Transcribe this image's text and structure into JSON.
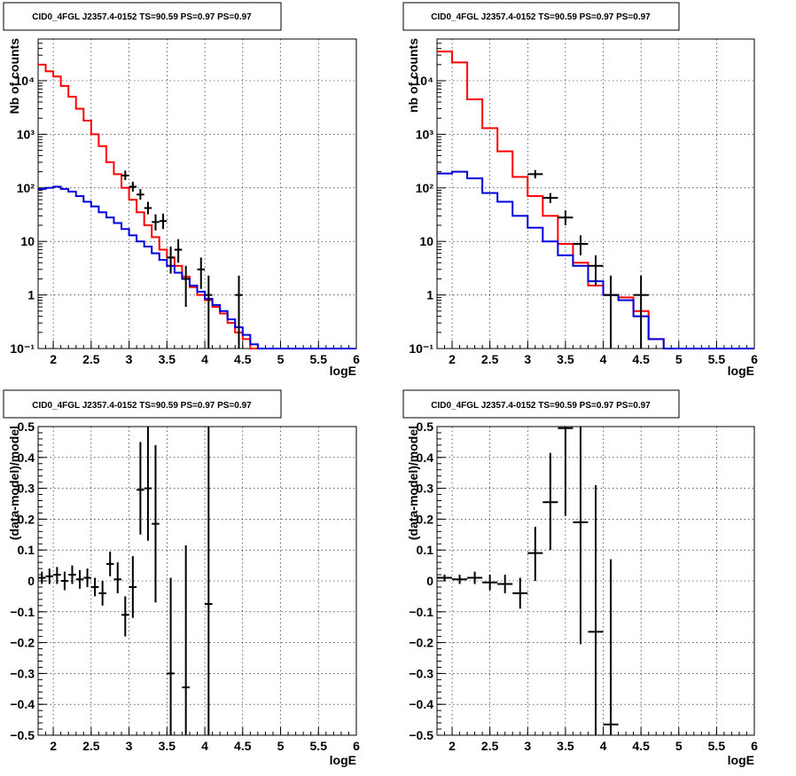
{
  "chart_data": [
    {
      "id": "p1",
      "type": "histogram",
      "title": "CID0_4FGL J2357.4-0152 TS=90.59 PS=0.97 PS=0.97",
      "xlabel": "logE",
      "ylabel": "Nb of counts",
      "xlim": [
        1.8,
        6.0
      ],
      "ylim": [
        0.1,
        60000
      ],
      "yscale": "log",
      "grid": true,
      "xticks": [
        "2",
        "2.5",
        "3",
        "3.5",
        "4",
        "4.5",
        "5",
        "5.5",
        "6"
      ],
      "yticks": [
        "10⁻¹",
        "1",
        "10",
        "10²",
        "10³",
        "10⁴"
      ],
      "bin_edges": [
        1.8,
        1.9,
        2.0,
        2.1,
        2.2,
        2.3,
        2.4,
        2.5,
        2.6,
        2.7,
        2.8,
        2.9,
        3.0,
        3.1,
        3.2,
        3.3,
        3.4,
        3.5,
        3.6,
        3.7,
        3.8,
        3.9,
        4.0,
        4.1,
        4.2,
        4.3,
        4.4,
        4.5,
        4.6,
        4.7,
        4.8,
        4.9,
        5.0,
        5.1,
        5.2,
        5.3,
        5.4,
        5.5,
        5.6,
        5.7,
        5.8,
        5.9,
        6.0
      ],
      "series": [
        {
          "color": "#ff0000",
          "kind": "step",
          "values": [
            20000,
            15000,
            12000,
            8000,
            5000,
            3000,
            1800,
            1000,
            600,
            300,
            180,
            100,
            60,
            35,
            20,
            12,
            7,
            5,
            3.5,
            2.2,
            1.4,
            1,
            0.8,
            0.6,
            0.45,
            0.3,
            0.2,
            0.15,
            0.1,
            0.1,
            0.1,
            0.1,
            0.1,
            0.1,
            0.1,
            0.1,
            0.1,
            0.1,
            0.1,
            0.1,
            0.1,
            0.1
          ]
        },
        {
          "color": "#0000dd",
          "kind": "step",
          "values": [
            95,
            100,
            105,
            95,
            85,
            70,
            55,
            45,
            35,
            28,
            22,
            17,
            13,
            10,
            8,
            6,
            4.5,
            3.5,
            2.6,
            2,
            1.5,
            1.15,
            0.85,
            0.65,
            0.5,
            0.35,
            0.25,
            0.18,
            0.12,
            0.1,
            0.1,
            0.1,
            0.1,
            0.1,
            0.1,
            0.1,
            0.1,
            0.1,
            0.1,
            0.1,
            0.1,
            0.1
          ]
        }
      ],
      "points": [
        {
          "x": 2.95,
          "y": 170,
          "xerr": 0.05,
          "ylo": 140,
          "yhi": 210
        },
        {
          "x": 3.05,
          "y": 105,
          "xerr": 0.05,
          "ylo": 85,
          "yhi": 130
        },
        {
          "x": 3.15,
          "y": 75,
          "xerr": 0.05,
          "ylo": 60,
          "yhi": 95
        },
        {
          "x": 3.25,
          "y": 42,
          "xerr": 0.05,
          "ylo": 32,
          "yhi": 55
        },
        {
          "x": 3.35,
          "y": 23,
          "xerr": 0.05,
          "ylo": 16,
          "yhi": 32
        },
        {
          "x": 3.45,
          "y": 24,
          "xerr": 0.05,
          "ylo": 17,
          "yhi": 33
        },
        {
          "x": 3.55,
          "y": 5,
          "xerr": 0.05,
          "ylo": 2.5,
          "yhi": 8
        },
        {
          "x": 3.65,
          "y": 7,
          "xerr": 0.05,
          "ylo": 4,
          "yhi": 11
        },
        {
          "x": 3.75,
          "y": 2,
          "xerr": 0.05,
          "ylo": 0.6,
          "yhi": 3.5
        },
        {
          "x": 3.95,
          "y": 3,
          "xerr": 0.05,
          "ylo": 1.3,
          "yhi": 5
        },
        {
          "x": 4.05,
          "y": 1,
          "xerr": 0.05,
          "ylo": 0.1,
          "yhi": 2.3
        },
        {
          "x": 4.45,
          "y": 1,
          "xerr": 0.05,
          "ylo": 0.1,
          "yhi": 2.3
        }
      ]
    },
    {
      "id": "p2",
      "type": "histogram",
      "title": "CID0_4FGL J2357.4-0152 TS=90.59 PS=0.97 PS=0.97",
      "xlabel": "logE",
      "ylabel": "nb of counts",
      "xlim": [
        1.8,
        6.0
      ],
      "ylim": [
        0.1,
        60000
      ],
      "yscale": "log",
      "grid": true,
      "xticks": [
        "2",
        "2.5",
        "3",
        "3.5",
        "4",
        "4.5",
        "5",
        "5.5",
        "6"
      ],
      "yticks": [
        "10⁻¹",
        "1",
        "10",
        "10²",
        "10³",
        "10⁴"
      ],
      "bin_edges": [
        1.8,
        2.0,
        2.2,
        2.4,
        2.6,
        2.8,
        3.0,
        3.2,
        3.4,
        3.6,
        3.8,
        4.0,
        4.2,
        4.4,
        4.6,
        4.8,
        5.0,
        5.2,
        5.4,
        5.6,
        5.8,
        6.0
      ],
      "series": [
        {
          "color": "#ff0000",
          "kind": "step",
          "values": [
            35000,
            22000,
            4500,
            1300,
            480,
            160,
            70,
            30,
            9,
            4,
            1.5,
            1.0,
            0.9,
            0.5,
            0.15,
            0.1,
            0.1,
            0.1,
            0.1,
            0.1,
            0.1
          ]
        },
        {
          "color": "#0000dd",
          "kind": "step",
          "values": [
            185,
            200,
            150,
            80,
            55,
            30,
            18,
            10,
            5.5,
            3.5,
            1.8,
            1.0,
            0.8,
            0.4,
            0.15,
            0.1,
            0.1,
            0.1,
            0.1,
            0.1,
            0.1
          ]
        }
      ],
      "points": [
        {
          "x": 3.1,
          "y": 180,
          "xerr": 0.1,
          "ylo": 150,
          "yhi": 215
        },
        {
          "x": 3.3,
          "y": 65,
          "xerr": 0.1,
          "ylo": 52,
          "yhi": 80
        },
        {
          "x": 3.5,
          "y": 28,
          "xerr": 0.1,
          "ylo": 20,
          "yhi": 38
        },
        {
          "x": 3.7,
          "y": 9,
          "xerr": 0.1,
          "ylo": 5.5,
          "yhi": 13
        },
        {
          "x": 3.9,
          "y": 3.5,
          "xerr": 0.1,
          "ylo": 1.5,
          "yhi": 5.5
        },
        {
          "x": 4.1,
          "y": 1,
          "xerr": 0.1,
          "ylo": 0.1,
          "yhi": 2.3
        },
        {
          "x": 4.5,
          "y": 1,
          "xerr": 0.1,
          "ylo": 0.1,
          "yhi": 2.3
        }
      ]
    },
    {
      "id": "p3",
      "type": "scatter",
      "title": "CID0_4FGL J2357.4-0152 TS=90.59 PS=0.97 PS=0.97",
      "xlabel": "logE",
      "ylabel": "(data-model)/model",
      "xlim": [
        1.8,
        6.0
      ],
      "ylim": [
        -0.5,
        0.5
      ],
      "yscale": "linear",
      "grid": true,
      "xticks": [
        "2",
        "2.5",
        "3",
        "3.5",
        "4",
        "4.5",
        "5",
        "5.5",
        "6"
      ],
      "yticks": [
        "−0.5",
        "−0.4",
        "−0.3",
        "−0.2",
        "−0.1",
        "0",
        "0.1",
        "0.2",
        "0.3",
        "0.4",
        "0.5"
      ],
      "series": [],
      "points": [
        {
          "x": 1.85,
          "y": 0.01,
          "xerr": 0.05,
          "ylo": -0.01,
          "yhi": 0.03
        },
        {
          "x": 1.95,
          "y": 0.015,
          "xerr": 0.05,
          "ylo": -0.01,
          "yhi": 0.04
        },
        {
          "x": 2.05,
          "y": 0.02,
          "xerr": 0.05,
          "ylo": -0.01,
          "yhi": 0.045
        },
        {
          "x": 2.15,
          "y": 0.0,
          "xerr": 0.05,
          "ylo": -0.03,
          "yhi": 0.03
        },
        {
          "x": 2.25,
          "y": 0.02,
          "xerr": 0.05,
          "ylo": -0.01,
          "yhi": 0.05
        },
        {
          "x": 2.35,
          "y": 0.005,
          "xerr": 0.05,
          "ylo": -0.025,
          "yhi": 0.035
        },
        {
          "x": 2.45,
          "y": 0.01,
          "xerr": 0.05,
          "ylo": -0.02,
          "yhi": 0.04
        },
        {
          "x": 2.55,
          "y": -0.02,
          "xerr": 0.05,
          "ylo": -0.05,
          "yhi": 0.01
        },
        {
          "x": 2.65,
          "y": -0.04,
          "xerr": 0.05,
          "ylo": -0.08,
          "yhi": 0.0
        },
        {
          "x": 2.75,
          "y": 0.055,
          "xerr": 0.05,
          "ylo": 0.015,
          "yhi": 0.095
        },
        {
          "x": 2.85,
          "y": 0.005,
          "xerr": 0.05,
          "ylo": -0.04,
          "yhi": 0.06
        },
        {
          "x": 2.95,
          "y": -0.11,
          "xerr": 0.05,
          "ylo": -0.18,
          "yhi": -0.05
        },
        {
          "x": 3.05,
          "y": -0.02,
          "xerr": 0.05,
          "ylo": -0.12,
          "yhi": 0.08
        },
        {
          "x": 3.15,
          "y": 0.295,
          "xerr": 0.05,
          "ylo": 0.15,
          "yhi": 0.45
        },
        {
          "x": 3.25,
          "y": 0.3,
          "xerr": 0.05,
          "ylo": 0.13,
          "yhi": 0.5
        },
        {
          "x": 3.35,
          "y": 0.185,
          "xerr": 0.05,
          "ylo": -0.07,
          "yhi": 0.44
        },
        {
          "x": 3.55,
          "y": -0.3,
          "xerr": 0.05,
          "ylo": -0.5,
          "yhi": 0.01
        },
        {
          "x": 3.75,
          "y": -0.345,
          "xerr": 0.05,
          "ylo": -0.5,
          "yhi": 0.115
        },
        {
          "x": 4.05,
          "y": -0.075,
          "xerr": 0.05,
          "ylo": -0.5,
          "yhi": 0.5
        }
      ]
    },
    {
      "id": "p4",
      "type": "scatter",
      "title": "CID0_4FGL J2357.4-0152 TS=90.59 PS=0.97 PS=0.97",
      "xlabel": "logE",
      "ylabel": "(data-model)/model",
      "xlim": [
        1.8,
        6.0
      ],
      "ylim": [
        -0.5,
        0.5
      ],
      "yscale": "linear",
      "grid": true,
      "xticks": [
        "2",
        "2.5",
        "3",
        "3.5",
        "4",
        "4.5",
        "5",
        "5.5",
        "6"
      ],
      "yticks": [
        "−0.5",
        "−0.4",
        "−0.3",
        "−0.2",
        "−0.1",
        "0",
        "0.1",
        "0.2",
        "0.3",
        "0.4",
        "0.5"
      ],
      "series": [],
      "points": [
        {
          "x": 1.9,
          "y": 0.01,
          "xerr": 0.1,
          "ylo": 0.0,
          "yhi": 0.02
        },
        {
          "x": 2.1,
          "y": 0.005,
          "xerr": 0.1,
          "ylo": -0.01,
          "yhi": 0.02
        },
        {
          "x": 2.3,
          "y": 0.01,
          "xerr": 0.1,
          "ylo": -0.01,
          "yhi": 0.03
        },
        {
          "x": 2.5,
          "y": -0.005,
          "xerr": 0.1,
          "ylo": -0.03,
          "yhi": 0.02
        },
        {
          "x": 2.7,
          "y": -0.01,
          "xerr": 0.1,
          "ylo": -0.04,
          "yhi": 0.02
        },
        {
          "x": 2.9,
          "y": -0.04,
          "xerr": 0.1,
          "ylo": -0.09,
          "yhi": 0.01
        },
        {
          "x": 3.1,
          "y": 0.09,
          "xerr": 0.1,
          "ylo": 0.0,
          "yhi": 0.175
        },
        {
          "x": 3.3,
          "y": 0.255,
          "xerr": 0.1,
          "ylo": 0.1,
          "yhi": 0.415
        },
        {
          "x": 3.5,
          "y": 0.495,
          "xerr": 0.1,
          "ylo": 0.21,
          "yhi": 0.5
        },
        {
          "x": 3.7,
          "y": 0.19,
          "xerr": 0.1,
          "ylo": -0.205,
          "yhi": 0.5
        },
        {
          "x": 3.9,
          "y": -0.165,
          "xerr": 0.1,
          "ylo": -0.5,
          "yhi": 0.31
        },
        {
          "x": 4.1,
          "y": -0.465,
          "xerr": 0.1,
          "ylo": -0.5,
          "yhi": 0.07
        }
      ]
    }
  ]
}
